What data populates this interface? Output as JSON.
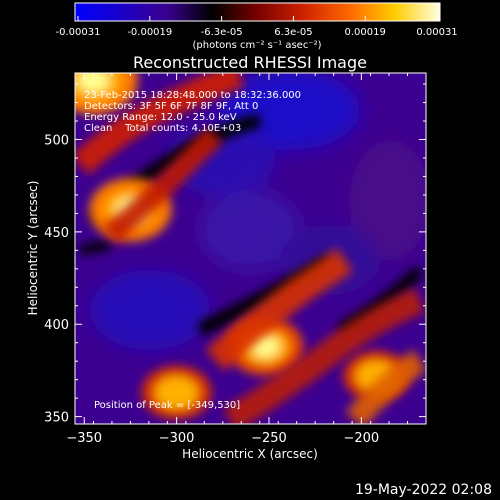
{
  "chart_data": {
    "type": "heatmap",
    "title": "Reconstructed RHESSI Image",
    "xlabel": "Heliocentric X (arcsec)",
    "ylabel": "Heliocentric Y (arcsec)",
    "xlim": [
      -355,
      -165
    ],
    "ylim": [
      346,
      536
    ],
    "x_ticks": [
      -350,
      -300,
      -250,
      -200
    ],
    "y_ticks": [
      350,
      400,
      450,
      500
    ],
    "colorbar": {
      "ticks": [
        "-0.00031",
        "-0.00019",
        "-6.3e-05",
        "6.3e-05",
        "0.00019",
        "0.00031"
      ],
      "unit_label": "(photons cm⁻² s⁻¹ asec⁻²)",
      "colors": [
        "#0000ff",
        "#1a00c8",
        "#3a0090",
        "#000000",
        "#7a0000",
        "#cc2200",
        "#ff6600",
        "#ffcc00",
        "#ffffe0"
      ]
    },
    "annotations": [
      "23-Feb-2015 18:28:48.000 to 18:32:36.000",
      "Detectors: 3F 5F 6F 7F 8F 9F, Att 0",
      "Energy Range: 12.0 - 25.0 keV",
      "Clean    Total counts: 4.10E+03"
    ],
    "peak_label": "Position of Peak = [-349,530]",
    "peak": [
      -349,
      530
    ],
    "features": [
      {
        "x": -345,
        "y": 532,
        "value": 1.0
      },
      {
        "x": -325,
        "y": 462,
        "value": 0.85
      },
      {
        "x": -252,
        "y": 388,
        "value": 0.7
      },
      {
        "x": -192,
        "y": 372,
        "value": 0.45
      },
      {
        "x": -300,
        "y": 363,
        "value": 0.55
      }
    ],
    "timestamp": "19-May-2022 02:08"
  }
}
